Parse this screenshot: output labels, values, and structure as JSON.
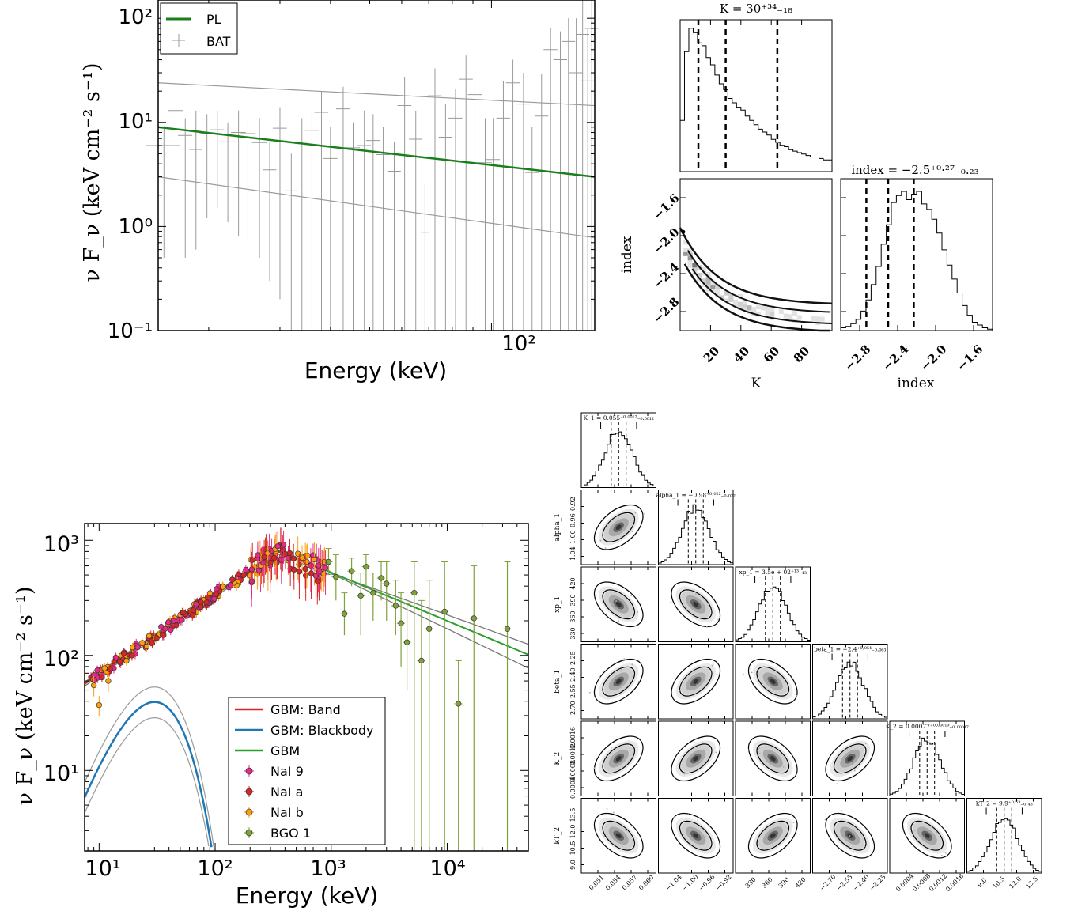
{
  "chart_data": [
    {
      "type": "scatter",
      "panel": "BAT spectrum",
      "xlabel": "Energy (keV)",
      "ylabel": "ν F_ν (keV cm⁻² s⁻¹)",
      "xscale": "log",
      "yscale": "log",
      "xlim": [
        15,
        180
      ],
      "ylim": [
        0.1,
        150
      ],
      "x_tick_labels": [
        "10²"
      ],
      "y_tick_labels": [
        "10⁻¹",
        "10⁰",
        "10¹",
        "10²"
      ],
      "legend": {
        "placement": "top-left",
        "entries": [
          "PL",
          "BAT"
        ]
      },
      "model": {
        "name": "PL",
        "color": "#1a7f1a",
        "band_color": "#9a9a9a",
        "line": [
          [
            15,
            9
          ],
          [
            180,
            3.0
          ]
        ],
        "band_upper": [
          [
            15,
            24
          ],
          [
            180,
            14.5
          ]
        ],
        "band_lower": [
          [
            15,
            3.0
          ],
          [
            180,
            0.78
          ]
        ]
      },
      "series": [
        {
          "name": "BAT",
          "color": "#9a9a9a",
          "points": [
            [
              15.5,
              6.0,
              0.5,
              9.2,
              1.5
            ],
            [
              16.6,
              13,
              7.5,
              17,
              0.7
            ],
            [
              17.5,
              7.5,
              0.5,
              11,
              0.7
            ],
            [
              18.6,
              5.5,
              0.6,
              13,
              0.7
            ],
            [
              19.8,
              7.8,
              1.2,
              12,
              0.8
            ],
            [
              21,
              8.5,
              1.5,
              13,
              0.8
            ],
            [
              22.3,
              6.5,
              1.1,
              10,
              1.0
            ],
            [
              23.7,
              8.0,
              0.8,
              13,
              1.0
            ],
            [
              25,
              7.8,
              0.7,
              11,
              1.0
            ],
            [
              26.7,
              6.4,
              0.5,
              11,
              1.1
            ],
            [
              28.3,
              3.5,
              0.3,
              6.5,
              1.1
            ],
            [
              30,
              8.8,
              0.2,
              14,
              1.2
            ],
            [
              32,
              2.2,
              0.1,
              5,
              1.2
            ],
            [
              34,
              6.3,
              0.1,
              11,
              1.3
            ],
            [
              36,
              8.4,
              0.1,
              14,
              1.4
            ],
            [
              38,
              12.5,
              0.1,
              20,
              1.5
            ],
            [
              40,
              4.5,
              0.1,
              9,
              1.6
            ],
            [
              43,
              13.5,
              0.1,
              22,
              1.7
            ],
            [
              45.5,
              5.7,
              0.1,
              10,
              1.8
            ],
            [
              48.5,
              6.0,
              0.1,
              13,
              1.9
            ],
            [
              51,
              6.7,
              0.1,
              12,
              2.0
            ],
            [
              54,
              4.9,
              0.1,
              9,
              2.1
            ],
            [
              57.5,
              3.4,
              0.1,
              6.5,
              2.2
            ],
            [
              61,
              14.5,
              0.1,
              27,
              2.4
            ],
            [
              65,
              6.9,
              0.1,
              13,
              2.5
            ],
            [
              68.5,
              0.88,
              0.1,
              2.6,
              1.6
            ],
            [
              72.5,
              18,
              0.1,
              33,
              2.8
            ],
            [
              77,
              7.2,
              0.1,
              15,
              3.0
            ],
            [
              81.5,
              11,
              0.1,
              21,
              3.2
            ],
            [
              86.5,
              26,
              0.1,
              44,
              3.4
            ],
            [
              91,
              18.5,
              0.1,
              33,
              3.6
            ],
            [
              96.5,
              4.1,
              0.1,
              11,
              3.8
            ],
            [
              101,
              4.4,
              0.1,
              11,
              3.9
            ],
            [
              107,
              11,
              0.1,
              25,
              4.2
            ],
            [
              113,
              24,
              0.1,
              40,
              4.4
            ],
            [
              120,
              15,
              0.1,
              30,
              4.7
            ],
            [
              126,
              3.3,
              0.1,
              9,
              4.9
            ],
            [
              133,
              11.5,
              0.1,
              29,
              5.2
            ],
            [
              140,
              50,
              0.1,
              80,
              5.5
            ],
            [
              148,
              40,
              0.1,
              75,
              5.8
            ],
            [
              155,
              60,
              0.1,
              100,
              6.0
            ],
            [
              162,
              30,
              0.1,
              100,
              6.3
            ],
            [
              168,
              70,
              0.1,
              150,
              6.5
            ],
            [
              173,
              25,
              0.1,
              80,
              6.7
            ],
            [
              177,
              80,
              0.1,
              150,
              6.8
            ]
          ]
        }
      ]
    },
    {
      "type": "heatmap",
      "panel": "corner plot (K, index)",
      "parameters": [
        "K",
        "index"
      ],
      "titles": [
        "K = 30⁺³⁴₋₁₈",
        "index = −2.5⁺⁰·²⁷₋₀.₂₃"
      ],
      "axis_ranges": {
        "K": [
          0,
          100
        ],
        "index": [
          -3.0,
          -1.4
        ]
      },
      "tick_labels": {
        "K": [
          "20",
          "40",
          "60",
          "80"
        ],
        "index": [
          "−2.8",
          "−2.4",
          "−2.0",
          "−1.6"
        ]
      },
      "quantiles": {
        "K": [
          12,
          30,
          64
        ],
        "index": [
          -2.73,
          -2.5,
          -2.23
        ]
      },
      "hist_K": [
        0.35,
        0.82,
        0.98,
        0.95,
        0.88,
        0.86,
        0.78,
        0.73,
        0.66,
        0.6,
        0.56,
        0.5,
        0.47,
        0.44,
        0.42,
        0.38,
        0.35,
        0.32,
        0.29,
        0.27,
        0.25,
        0.22,
        0.2,
        0.18,
        0.17,
        0.15,
        0.14,
        0.13,
        0.12,
        0.11,
        0.1,
        0.1,
        0.09,
        0.08,
        0.08
      ],
      "hist_index": [
        0.02,
        0.03,
        0.05,
        0.08,
        0.14,
        0.22,
        0.33,
        0.46,
        0.62,
        0.76,
        0.92,
        0.97,
        1.0,
        0.94,
        0.98,
        1.0,
        0.91,
        0.87,
        0.8,
        0.7,
        0.58,
        0.47,
        0.37,
        0.27,
        0.18,
        0.11,
        0.06,
        0.04,
        0.02,
        0.01
      ]
    },
    {
      "type": "scatter",
      "panel": "GBM spectrum",
      "xlabel": "Energy (keV)",
      "ylabel": "ν F_ν (keV cm⁻² s⁻¹)",
      "xscale": "log",
      "yscale": "log",
      "xlim": [
        7.5,
        50000
      ],
      "ylim": [
        2,
        1400
      ],
      "x_tick_labels": [
        "10¹",
        "10²",
        "10³",
        "10⁴"
      ],
      "y_tick_labels": [
        "10¹",
        "10²",
        "10³"
      ],
      "legend": {
        "placement": "bottom-center",
        "entries": [
          {
            "label": "GBM: Band",
            "color": "#d62728",
            "kind": "line"
          },
          {
            "label": "GBM: Blackbody",
            "color": "#1f77b4",
            "kind": "line"
          },
          {
            "label": "GBM",
            "color": "#2ca02c",
            "kind": "line"
          },
          {
            "label": "NaI 9",
            "color": "#e7298a",
            "kind": "point"
          },
          {
            "label": "NaI a",
            "color": "#d62728",
            "kind": "point"
          },
          {
            "label": "NaI b",
            "color": "#ff9f0a",
            "kind": "point"
          },
          {
            "label": "BGO 1",
            "color": "#7fa33a",
            "kind": "point"
          }
        ]
      },
      "band_model": {
        "peak_keV": 350,
        "peak_value": 800,
        "low_index": 0.69,
        "high_index": -0.42
      },
      "blackbody": {
        "kT_keV": 10,
        "peak_value": 35
      },
      "bgo_points": [
        [
          950,
          650,
          500,
          850
        ],
        [
          1100,
          480,
          300,
          750
        ],
        [
          1300,
          230,
          150,
          350
        ],
        [
          1500,
          540,
          400,
          700
        ],
        [
          1800,
          330,
          150,
          520
        ],
        [
          2000,
          590,
          400,
          750
        ],
        [
          2300,
          350,
          200,
          520
        ],
        [
          2700,
          470,
          300,
          650
        ],
        [
          3000,
          420,
          200,
          650
        ],
        [
          3600,
          270,
          150,
          450
        ],
        [
          4000,
          190,
          80,
          350
        ],
        [
          4500,
          130,
          50,
          280
        ],
        [
          5200,
          350,
          2,
          650
        ],
        [
          6000,
          90,
          2,
          300
        ],
        [
          7000,
          170,
          2,
          450
        ],
        [
          9500,
          240,
          2,
          650
        ],
        [
          12500,
          38,
          2,
          90
        ],
        [
          17000,
          210,
          2,
          600
        ],
        [
          33000,
          170,
          2,
          650
        ]
      ]
    },
    {
      "type": "heatmap",
      "panel": "corner plot (6 parameters)",
      "parameters": [
        "K_1",
        "alpha_1",
        "xp_1",
        "beta_1",
        "K_2",
        "kT_2"
      ],
      "titles": [
        "K_1 = 0.055⁺⁰·⁰⁰¹²₋₀.₀₀₁₂",
        "alpha_1 = −0.98⁺⁰·⁰²²₋₀.₀₂₂",
        "xp_1 = 3.5e + 02⁺¹³₋₁₃",
        "beta_1 = −2.4⁺⁰·⁰⁵⁴₋₀.₀₆₃",
        "K_2 = 0.00077⁺⁰·⁰⁰⁰¹⁹₋₀.₀₀₀₁₇",
        "kT_2 = 9.9⁺⁰·⁵³₋₀.₄₈"
      ],
      "x_tick_labels": [
        [
          "0.051",
          "0.054",
          "0.057",
          "0.060"
        ],
        [
          "−1.04",
          "−1.00",
          "−0.96",
          "−0.92"
        ],
        [
          "330",
          "360",
          "390",
          "420"
        ],
        [
          "−2.70",
          "−2.55",
          "−2.40",
          "−2.25"
        ],
        [
          "0.0004",
          "0.0008",
          "0.0012",
          "0.0016"
        ],
        [
          "9.0",
          "10.5",
          "12.0",
          "13.5"
        ]
      ],
      "y_tick_labels": [
        [],
        [
          "−0.92",
          "−0.96",
          "−1.00",
          "−1.04"
        ],
        [
          "420",
          "390",
          "360",
          "330"
        ],
        [
          "−2.25",
          "−2.40",
          "−2.55",
          "−2.70"
        ],
        [
          "0.0016",
          "0.0012",
          "0.0008",
          "0.0004"
        ],
        [
          "13.5",
          "12.0",
          "10.5",
          "9.0"
        ]
      ]
    }
  ]
}
